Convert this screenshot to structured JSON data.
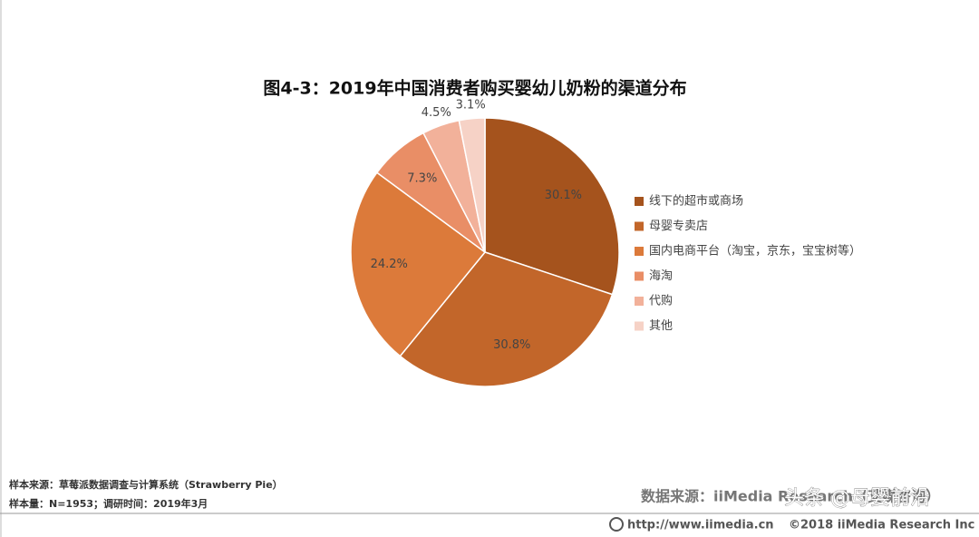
{
  "chart_data": {
    "type": "pie",
    "title": "图4-3：2019年中国消费者购买婴幼儿奶粉的渠道分布",
    "categories": [
      "线下的超市或商场",
      "母婴专卖店",
      "国内电商平台（淘宝，京东，宝宝树等）",
      "海淘",
      "代购",
      "其他"
    ],
    "values": [
      30.1,
      30.8,
      24.2,
      7.3,
      4.5,
      3.1
    ],
    "value_labels": [
      "30.1%",
      "30.8%",
      "24.2%",
      "7.3%",
      "4.5%",
      "3.1%"
    ],
    "colors": [
      "#a5531d",
      "#c2662a",
      "#dc7a3a",
      "#e98e66",
      "#f2b19a",
      "#f6d2c6"
    ],
    "legend": "right"
  },
  "footer": {
    "sample_source": "样本来源：草莓派数据调查与计算系统（Strawberry   Pie）",
    "sample_size": "样本量：N=1953；调研时间：2019年3月",
    "data_source": "数据来源：iiMedia Research（艾媒咨询）",
    "url": "http://www.iimedia.cn",
    "copyright": "©2018  iiMedia Research  Inc",
    "watermark": "头条 @母婴前沿"
  }
}
